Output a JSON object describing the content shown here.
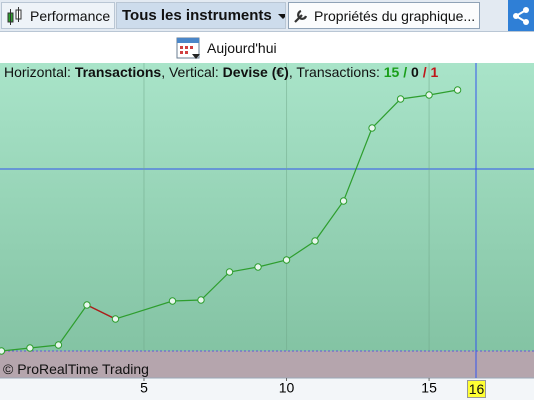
{
  "toolbar": {
    "performance": "Performance",
    "instruments": "Tous les instruments",
    "properties": "Propriétés du graphique...",
    "today": "Aujourd'hui"
  },
  "info": {
    "h_label": "Horizontal:",
    "h_value": "Transactions",
    "v_label": ", Vertical:",
    "v_value": "Devise (€)",
    "t_label": ", Transactions:",
    "wins": 15,
    "neutral": 0,
    "losses": 1,
    "separator": "/"
  },
  "copyright": "© ProRealTime Trading",
  "crosshair_label": "16",
  "chart_data": {
    "type": "line",
    "x": [
      0,
      1,
      2,
      3,
      4,
      6,
      7,
      8,
      9,
      10,
      11,
      12,
      13,
      14,
      15,
      16
    ],
    "values": [
      0,
      3,
      6,
      46,
      32,
      50,
      51,
      79,
      84,
      91,
      110,
      150,
      223,
      252,
      256,
      261
    ],
    "color": "#2e9e2e",
    "loss_color": "#b01c1c",
    "xlim": [
      -0.05,
      18.68
    ],
    "ylim": [
      -27,
      288
    ],
    "xticks": [
      5,
      10,
      15
    ]
  }
}
